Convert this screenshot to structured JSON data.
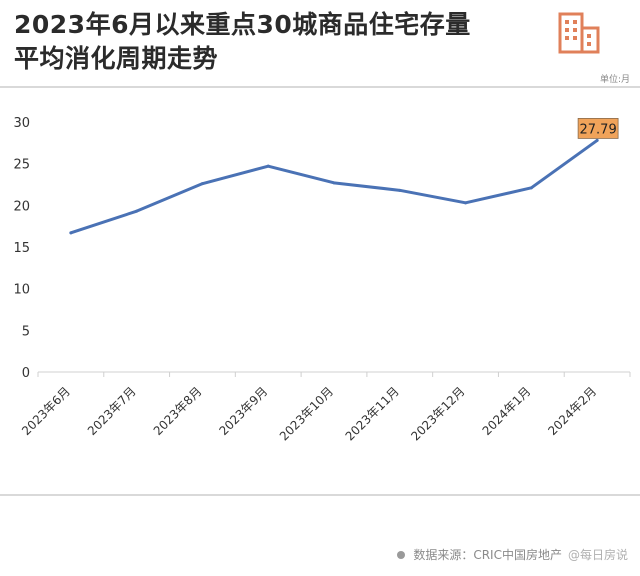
{
  "header": {
    "title_line1": "2023年6月以来重点30城商品住宅存量",
    "title_line2": "平均消化周期走势",
    "unit": "单位:月"
  },
  "logo_icon": "building-icon",
  "colors": {
    "line": "#4a72b5",
    "callout": "#f0a35a",
    "logo": "#e0805a"
  },
  "source": {
    "label": "数据来源：CRIC中国房地产",
    "watermark": "@每日房说"
  },
  "chart_data": {
    "type": "line",
    "categories": [
      "2023年6月",
      "2023年7月",
      "2023年8月",
      "2023年9月",
      "2023年10月",
      "2023年11月",
      "2023年12月",
      "2024年1月",
      "2024年2月"
    ],
    "series": [
      {
        "values": [
          16.7,
          19.3,
          22.6,
          24.7,
          22.7,
          21.8,
          20.3,
          22.1,
          27.79
        ]
      }
    ],
    "data_labels": [
      {
        "index": 8,
        "text": "27.79"
      }
    ],
    "yticks": [
      0,
      5,
      10,
      15,
      20,
      25,
      30
    ],
    "ylim": [
      0,
      30
    ],
    "grid": false,
    "legend": "none",
    "xlabel": "",
    "ylabel": ""
  }
}
